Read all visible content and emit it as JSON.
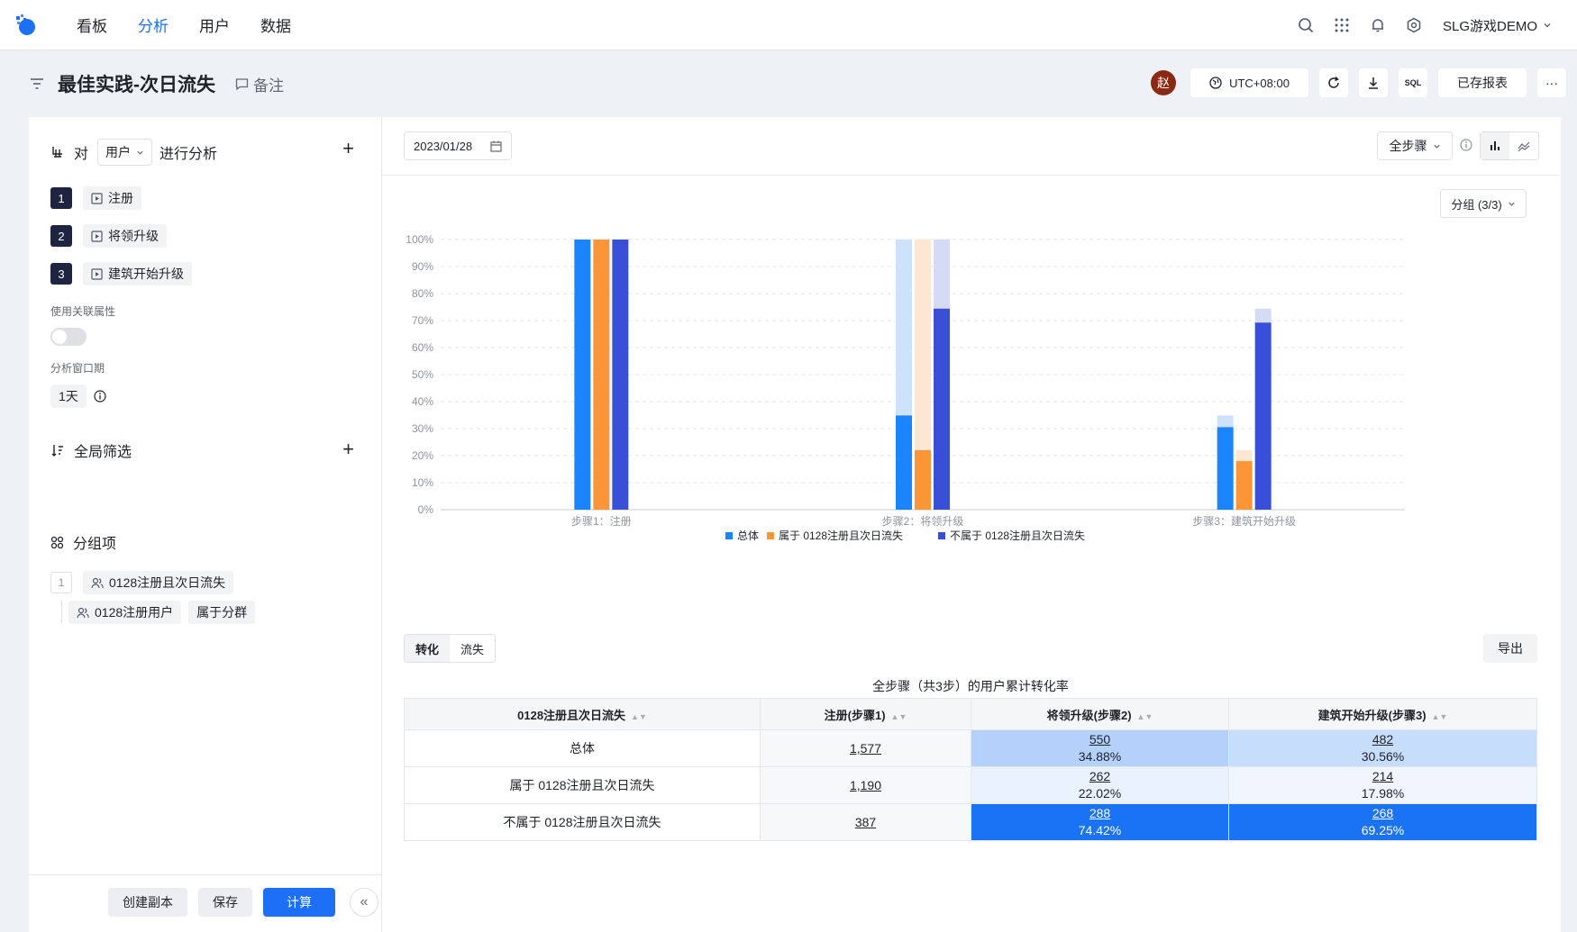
{
  "nav": {
    "items": [
      "看板",
      "分析",
      "用户",
      "数据"
    ],
    "active_index": 1,
    "project": "SLG游戏DEMO"
  },
  "header": {
    "title": "最佳实践-次日流失",
    "note_label": "备注",
    "avatar_text": "赵",
    "timezone": "UTC+08:00",
    "sql_label": "SQL",
    "saved_reports": "已存报表",
    "more": "···"
  },
  "left": {
    "analyze_prefix": "对",
    "subject": "用户",
    "analyze_suffix": "进行分析",
    "steps": [
      {
        "num": "1",
        "label": "注册"
      },
      {
        "num": "2",
        "label": "将领升级"
      },
      {
        "num": "3",
        "label": "建筑开始升级"
      }
    ],
    "related_attr_label": "使用关联属性",
    "window_label": "分析窗口期",
    "window_value": "1天",
    "global_filter_title": "全局筛选",
    "filter_cohort": "0128注册用户",
    "filter_op": "属于分群",
    "group_title": "分组项",
    "group_num": "1",
    "group_item": "0128注册且次日流失",
    "btn_copy": "创建副本",
    "btn_save": "保存",
    "btn_calc": "计算",
    "btn_collapse": "«"
  },
  "main": {
    "date": "2023/01/28",
    "all_steps": "全步骤",
    "group_select": "分组 (3/3)",
    "tabs": [
      "转化",
      "流失"
    ],
    "export": "导出",
    "table_title": "全步骤（共3步）的用户累计转化率"
  },
  "colors": {
    "accent": "#1d6ff5",
    "series": [
      "#1a85ff",
      "#fa9638",
      "#3a4fd8"
    ],
    "series_light": [
      "#cfe2fc",
      "#fde6d2",
      "#d6dbf5"
    ]
  },
  "chart_data": {
    "type": "bar",
    "categories": [
      "步骤1：注册",
      "步骤2：将领升级",
      "步骤3：建筑开始升级"
    ],
    "series": [
      {
        "name": "总体",
        "values": [
          100,
          34.88,
          30.56
        ]
      },
      {
        "name": "属于 0128注册且次日流失",
        "values": [
          100,
          22.02,
          17.98
        ]
      },
      {
        "name": "不属于 0128注册且次日流失",
        "values": [
          100,
          74.42,
          69.25
        ]
      }
    ],
    "ylim": [
      0,
      100
    ],
    "yticks": [
      "0%",
      "10%",
      "20%",
      "30%",
      "40%",
      "50%",
      "60%",
      "70%",
      "80%",
      "90%",
      "100%"
    ],
    "grid": true,
    "legend": "bottom"
  },
  "table": {
    "headers": [
      "0128注册且次日流失",
      "注册(步骤1)",
      "将领升级(步骤2)",
      "建筑开始升级(步骤3)"
    ],
    "rows": [
      {
        "label": "总体",
        "s1": "1,577",
        "s2": "550",
        "s2p": "34.88%",
        "s3": "482",
        "s3p": "30.56%"
      },
      {
        "label": "属于 0128注册且次日流失",
        "s1": "1,190",
        "s2": "262",
        "s2p": "22.02%",
        "s3": "214",
        "s3p": "17.98%"
      },
      {
        "label": "不属于 0128注册且次日流失",
        "s1": "387",
        "s2": "288",
        "s2p": "74.42%",
        "s3": "268",
        "s3p": "69.25%"
      }
    ]
  }
}
